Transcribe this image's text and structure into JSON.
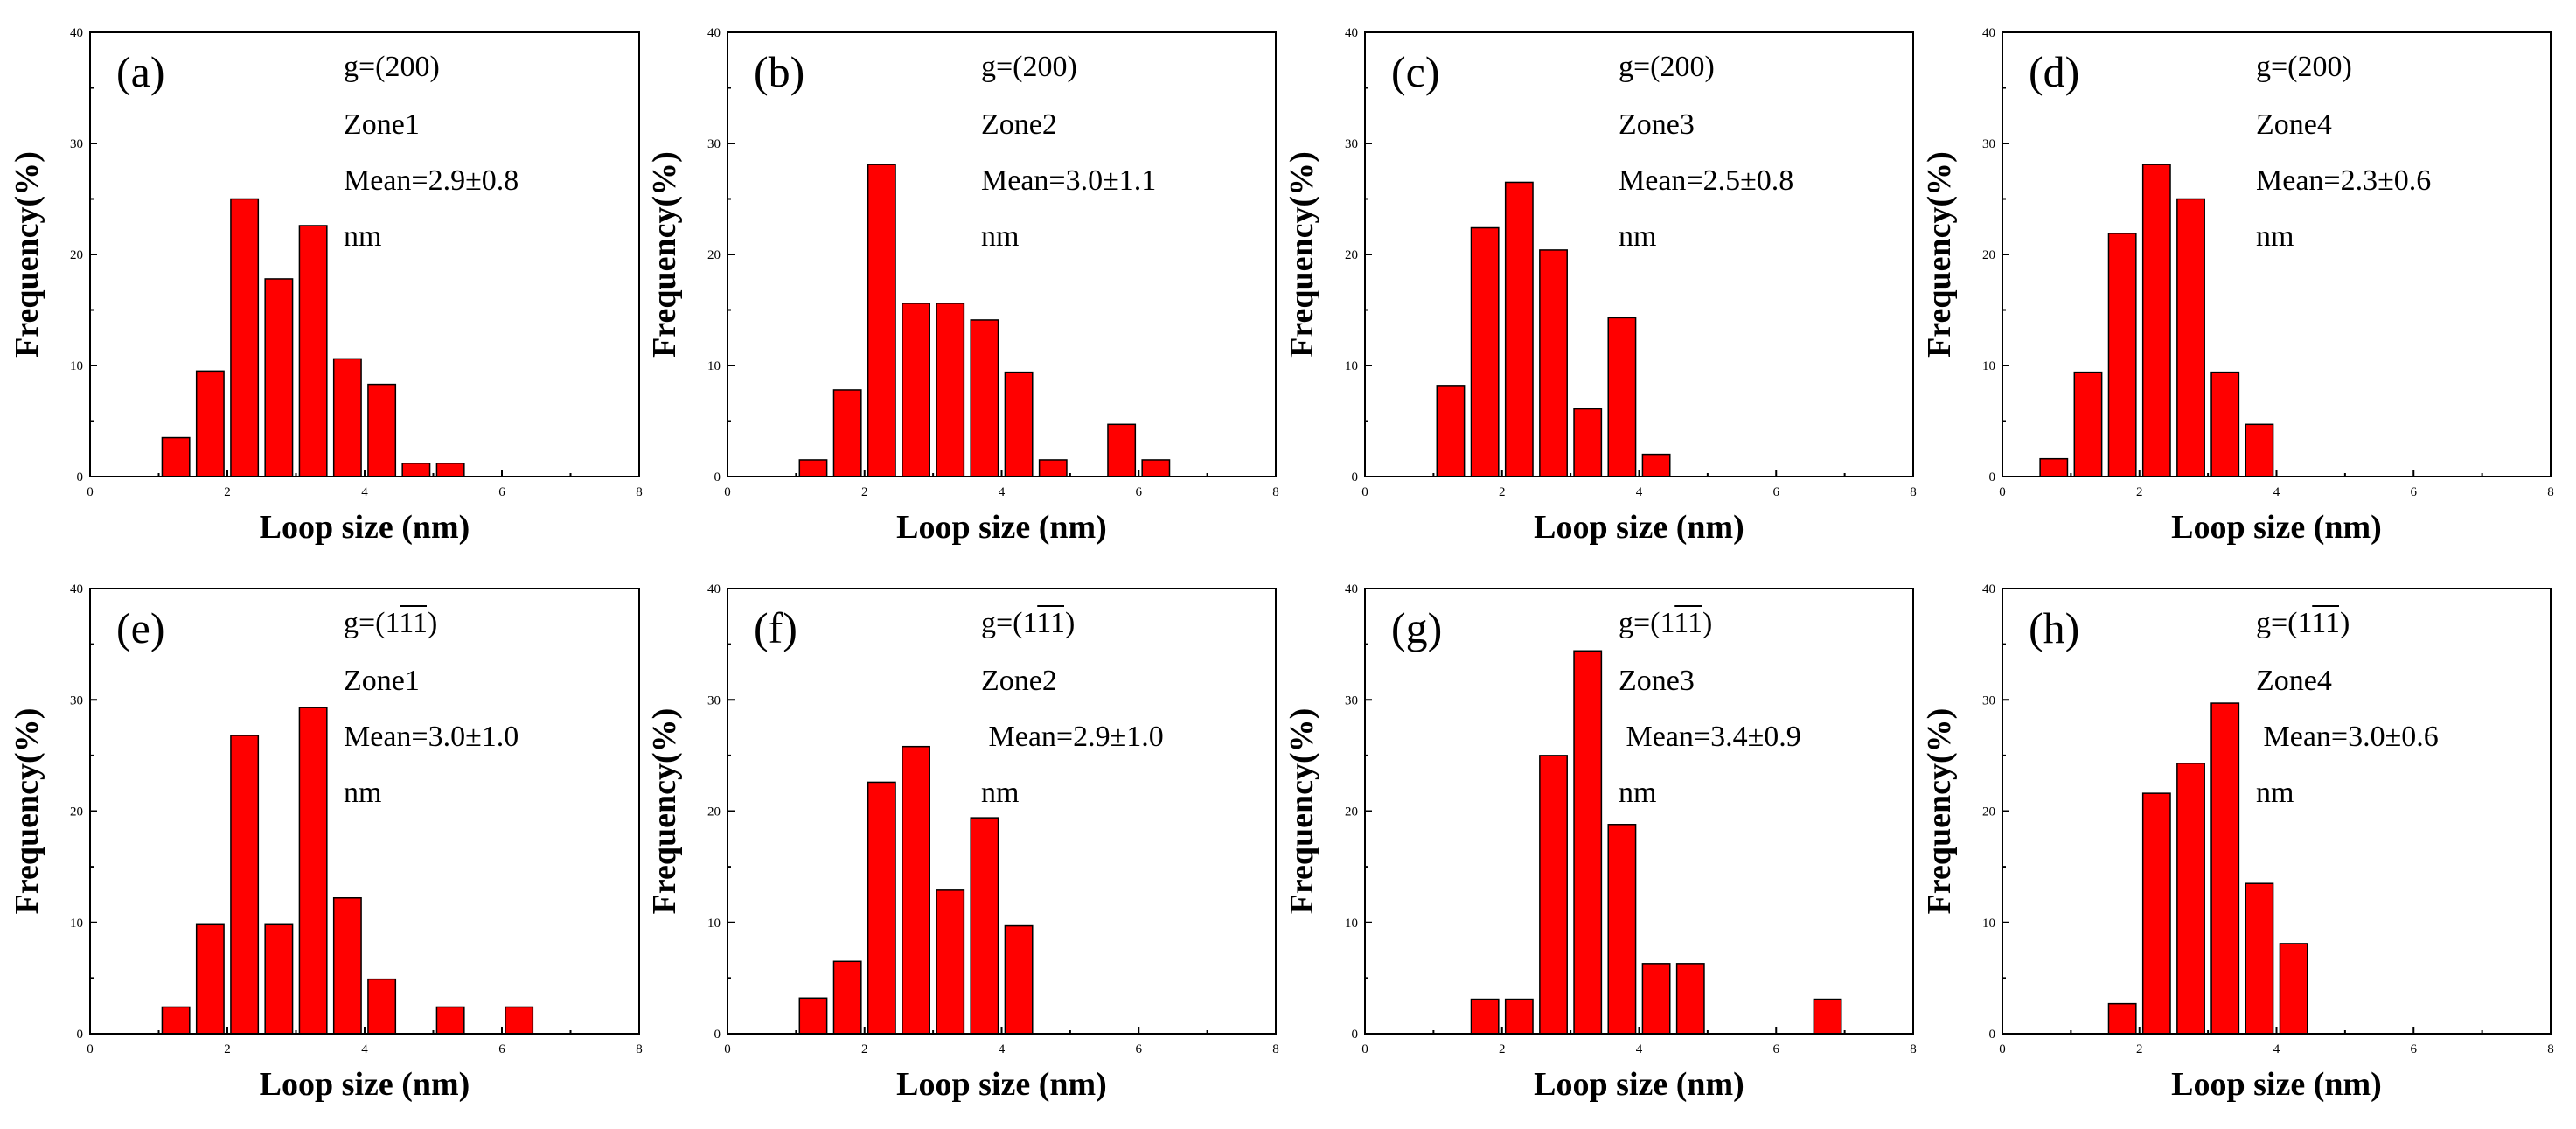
{
  "figure": {
    "colors": {
      "bar_fill": "#ff0000",
      "bar_edge": "#000000",
      "background": "#ffffff"
    }
  },
  "chart_data": [
    {
      "type": "bar",
      "label": "(a)",
      "title_lines": [
        "g=(200)",
        "Zone1",
        "Mean=2.9±0.8",
        "nm"
      ],
      "x": [
        1.25,
        1.75,
        2.25,
        2.75,
        3.25,
        3.75,
        4.25,
        4.75,
        5.25
      ],
      "values": [
        3.5,
        9.5,
        25,
        17.8,
        22.6,
        10.6,
        8.3,
        1.2,
        1.2
      ],
      "bar_width": 0.4,
      "xlabel": "Loop size (nm)",
      "ylabel": "Frequency(%)",
      "xlim": [
        0,
        8
      ],
      "ylim": [
        0,
        40
      ],
      "xticks": [
        0,
        2,
        4,
        6,
        8
      ],
      "yticks": [
        0,
        10,
        20,
        30,
        40
      ]
    },
    {
      "type": "bar",
      "label": "(b)",
      "title_lines": [
        "g=(200)",
        "Zone2",
        "Mean=3.0±1.1",
        "nm"
      ],
      "x": [
        1.25,
        1.75,
        2.25,
        2.75,
        3.25,
        3.75,
        4.25,
        4.75,
        5.75,
        6.25
      ],
      "values": [
        1.5,
        7.8,
        28.1,
        15.6,
        15.6,
        14.1,
        9.4,
        1.5,
        4.7,
        1.5
      ],
      "bar_width": 0.4,
      "xlabel": "Loop size (nm)",
      "ylabel": "Frequency(%)",
      "xlim": [
        0,
        8
      ],
      "ylim": [
        0,
        40
      ],
      "xticks": [
        0,
        2,
        4,
        6,
        8
      ],
      "yticks": [
        0,
        10,
        20,
        30,
        40
      ]
    },
    {
      "type": "bar",
      "label": "(c)",
      "title_lines": [
        "g=(200)",
        "Zone3",
        "Mean=2.5±0.8",
        "nm"
      ],
      "x": [
        1.25,
        1.75,
        2.25,
        2.75,
        3.25,
        3.75,
        4.25
      ],
      "values": [
        8.2,
        22.4,
        26.5,
        20.4,
        6.1,
        14.3,
        2.0
      ],
      "bar_width": 0.4,
      "xlabel": "Loop size (nm)",
      "ylabel": "Frequency(%)",
      "xlim": [
        0,
        8
      ],
      "ylim": [
        0,
        40
      ],
      "xticks": [
        0,
        2,
        4,
        6,
        8
      ],
      "yticks": [
        0,
        10,
        20,
        30,
        40
      ]
    },
    {
      "type": "bar",
      "label": "(d)",
      "title_lines": [
        "g=(200)",
        "Zone4",
        "Mean=2.3±0.6",
        "nm"
      ],
      "x": [
        0.75,
        1.25,
        1.75,
        2.25,
        2.75,
        3.25,
        3.75
      ],
      "values": [
        1.6,
        9.4,
        21.9,
        28.1,
        25.0,
        9.4,
        4.7
      ],
      "bar_width": 0.4,
      "xlabel": "Loop size (nm)",
      "ylabel": "Frequency(%)",
      "xlim": [
        0,
        8
      ],
      "ylim": [
        0,
        40
      ],
      "xticks": [
        0,
        2,
        4,
        6,
        8
      ],
      "yticks": [
        0,
        10,
        20,
        30,
        40
      ]
    },
    {
      "type": "bar",
      "label": "(e)",
      "title_lines": [
        "g=(1",
        "11",
        ")",
        "Zone1",
        "Mean=3.0±1.0",
        "nm"
      ],
      "x": [
        1.25,
        1.75,
        2.25,
        2.75,
        3.25,
        3.75,
        4.25,
        5.25,
        6.25
      ],
      "values": [
        2.4,
        9.8,
        26.8,
        9.8,
        29.3,
        12.2,
        4.9,
        2.4,
        2.4
      ],
      "bar_width": 0.4,
      "xlabel": "Loop size (nm)",
      "ylabel": "Frequency(%)",
      "xlim": [
        0,
        8
      ],
      "ylim": [
        0,
        40
      ],
      "xticks": [
        0,
        2,
        4,
        6,
        8
      ],
      "yticks": [
        0,
        10,
        20,
        30,
        40
      ]
    },
    {
      "type": "bar",
      "label": "(f)",
      "title_lines": [
        "g=(1",
        "11",
        ")",
        "Zone2",
        " Mean=2.9±1.0",
        "nm"
      ],
      "x": [
        1.25,
        1.75,
        2.25,
        2.75,
        3.25,
        3.75,
        4.25
      ],
      "values": [
        3.2,
        6.5,
        22.6,
        25.8,
        12.9,
        19.4,
        9.7
      ],
      "bar_width": 0.4,
      "xlabel": "Loop size (nm)",
      "ylabel": "Frequency(%)",
      "xlim": [
        0,
        8
      ],
      "ylim": [
        0,
        40
      ],
      "xticks": [
        0,
        2,
        4,
        6,
        8
      ],
      "yticks": [
        0,
        10,
        20,
        30,
        40
      ]
    },
    {
      "type": "bar",
      "label": "(g)",
      "title_lines": [
        "g=(1",
        "11",
        ")",
        "Zone3",
        " Mean=3.4±0.9",
        "nm"
      ],
      "x": [
        1.75,
        2.25,
        2.75,
        3.25,
        3.75,
        4.25,
        4.75,
        6.75
      ],
      "values": [
        3.1,
        3.1,
        25.0,
        34.4,
        18.8,
        6.3,
        6.3,
        3.1
      ],
      "bar_width": 0.4,
      "xlabel": "Loop size (nm)",
      "ylabel": "Frequency(%)",
      "xlim": [
        0,
        8
      ],
      "ylim": [
        0,
        40
      ],
      "xticks": [
        0,
        2,
        4,
        6,
        8
      ],
      "yticks": [
        0,
        10,
        20,
        30,
        40
      ]
    },
    {
      "type": "bar",
      "label": "(h)",
      "title_lines": [
        "g=(1",
        "11",
        ")",
        "Zone4",
        " Mean=3.0±0.6",
        "nm"
      ],
      "x": [
        1.75,
        2.25,
        2.75,
        3.25,
        3.75,
        4.25
      ],
      "values": [
        2.7,
        21.6,
        24.3,
        29.7,
        13.5,
        8.1
      ],
      "bar_width": 0.4,
      "xlabel": "Loop size (nm)",
      "ylabel": "Frequency(%)",
      "xlim": [
        0,
        8
      ],
      "ylim": [
        0,
        40
      ],
      "xticks": [
        0,
        2,
        4,
        6,
        8
      ],
      "yticks": [
        0,
        10,
        20,
        30,
        40
      ]
    }
  ]
}
